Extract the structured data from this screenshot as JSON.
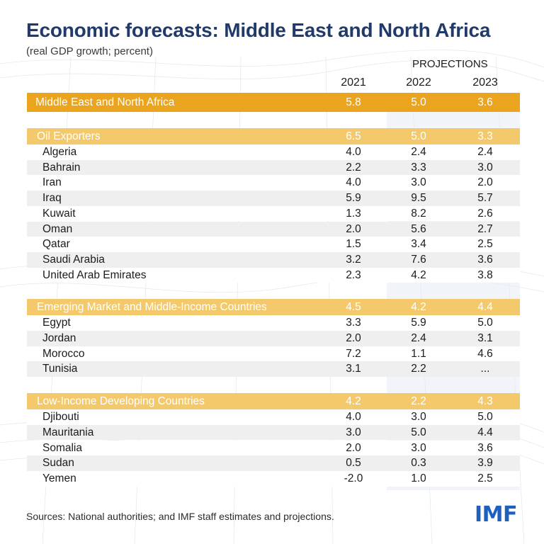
{
  "title": "Economic forecasts: Middle East and North Africa",
  "subtitle": "(real GDP growth; percent)",
  "projections_label": "PROJECTIONS",
  "footer": "Sources: National authorities; and IMF staff estimates and projections.",
  "logo_text": "IMF",
  "colors": {
    "title": "#1f3a6b",
    "total_row": "#eba41e",
    "group_row": "#f3c96c",
    "stripe": "#efefef",
    "logo": "#1f5fbf"
  },
  "chart_data": {
    "type": "table",
    "columns": [
      "2021",
      "2022",
      "2023"
    ],
    "rows": [
      {
        "kind": "total",
        "label": "Middle East and North Africa",
        "values": [
          "5.8",
          "5.0",
          "3.6"
        ]
      },
      {
        "kind": "group",
        "label": "Oil Exporters",
        "values": [
          "6.5",
          "5.0",
          "3.3"
        ]
      },
      {
        "kind": "item",
        "label": "Algeria",
        "values": [
          "4.0",
          "2.4",
          "2.4"
        ]
      },
      {
        "kind": "item",
        "label": "Bahrain",
        "values": [
          "2.2",
          "3.3",
          "3.0"
        ]
      },
      {
        "kind": "item",
        "label": "Iran",
        "values": [
          "4.0",
          "3.0",
          "2.0"
        ]
      },
      {
        "kind": "item",
        "label": "Iraq",
        "values": [
          "5.9",
          "9.5",
          "5.7"
        ]
      },
      {
        "kind": "item",
        "label": "Kuwait",
        "values": [
          "1.3",
          "8.2",
          "2.6"
        ]
      },
      {
        "kind": "item",
        "label": "Oman",
        "values": [
          "2.0",
          "5.6",
          "2.7"
        ]
      },
      {
        "kind": "item",
        "label": "Qatar",
        "values": [
          "1.5",
          "3.4",
          "2.5"
        ]
      },
      {
        "kind": "item",
        "label": "Saudi Arabia",
        "values": [
          "3.2",
          "7.6",
          "3.6"
        ]
      },
      {
        "kind": "item",
        "label": "United Arab Emirates",
        "values": [
          "2.3",
          "4.2",
          "3.8"
        ]
      },
      {
        "kind": "group",
        "label": "Emerging Market and Middle-Income Countries",
        "values": [
          "4.5",
          "4.2",
          "4.4"
        ]
      },
      {
        "kind": "item",
        "label": "Egypt",
        "values": [
          "3.3",
          "5.9",
          "5.0"
        ]
      },
      {
        "kind": "item",
        "label": "Jordan",
        "values": [
          "2.0",
          "2.4",
          "3.1"
        ]
      },
      {
        "kind": "item",
        "label": "Morocco",
        "values": [
          "7.2",
          "1.1",
          "4.6"
        ]
      },
      {
        "kind": "item",
        "label": "Tunisia",
        "values": [
          "3.1",
          "2.2",
          "..."
        ]
      },
      {
        "kind": "group",
        "label": "Low-Income Developing Countries",
        "values": [
          "4.2",
          "2.2",
          "4.3"
        ]
      },
      {
        "kind": "item",
        "label": "Djibouti",
        "values": [
          "4.0",
          "3.0",
          "5.0"
        ]
      },
      {
        "kind": "item",
        "label": "Mauritania",
        "values": [
          "3.0",
          "5.0",
          "4.4"
        ]
      },
      {
        "kind": "item",
        "label": "Somalia",
        "values": [
          "2.0",
          "3.0",
          "3.6"
        ]
      },
      {
        "kind": "item",
        "label": "Sudan",
        "values": [
          "0.5",
          "0.3",
          "3.9"
        ]
      },
      {
        "kind": "item",
        "label": "Yemen",
        "values": [
          "-2.0",
          "1.0",
          "2.5"
        ]
      }
    ]
  }
}
